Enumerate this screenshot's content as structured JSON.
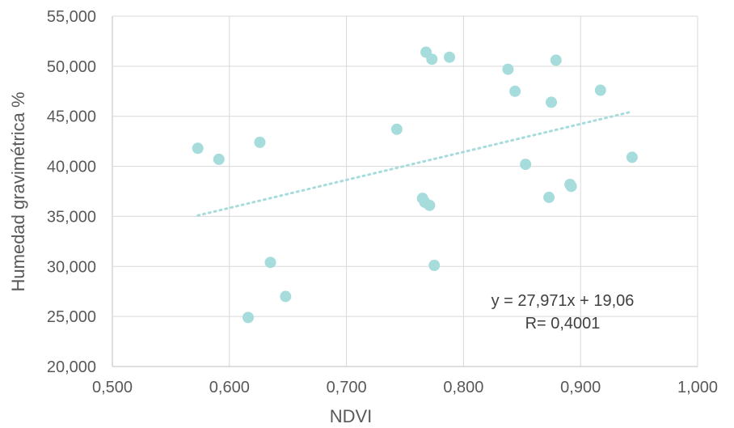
{
  "chart_data": {
    "type": "scatter",
    "xlabel": "NDVI",
    "ylabel": "Humedad gravimétrica %",
    "xlim": [
      0.5,
      1.0
    ],
    "ylim": [
      20,
      55
    ],
    "x_ticks": [
      "0,500",
      "0,600",
      "0,700",
      "0,800",
      "0,900",
      "1,000"
    ],
    "y_ticks": [
      "20,000",
      "25,000",
      "30,000",
      "35,000",
      "40,000",
      "45,000",
      "50,000",
      "55,000"
    ],
    "grid": true,
    "marker_color": "#a6dcdc",
    "trendline": {
      "type": "linear",
      "slope": 27.971,
      "intercept": 19.06,
      "x_range": [
        0.573,
        0.944
      ],
      "style": "dotted",
      "color": "#a6dcdc"
    },
    "annotations": [
      "y = 27,971x + 19,06",
      "R= 0,4001"
    ],
    "series": [
      {
        "points": [
          {
            "x": 0.573,
            "y": 41.8
          },
          {
            "x": 0.591,
            "y": 40.7
          },
          {
            "x": 0.616,
            "y": 24.9
          },
          {
            "x": 0.626,
            "y": 42.4
          },
          {
            "x": 0.635,
            "y": 30.4
          },
          {
            "x": 0.648,
            "y": 27.0
          },
          {
            "x": 0.743,
            "y": 43.7
          },
          {
            "x": 0.765,
            "y": 36.8
          },
          {
            "x": 0.767,
            "y": 36.4
          },
          {
            "x": 0.768,
            "y": 51.4
          },
          {
            "x": 0.771,
            "y": 36.1
          },
          {
            "x": 0.773,
            "y": 50.7
          },
          {
            "x": 0.775,
            "y": 30.1
          },
          {
            "x": 0.788,
            "y": 50.9
          },
          {
            "x": 0.838,
            "y": 49.7
          },
          {
            "x": 0.844,
            "y": 47.5
          },
          {
            "x": 0.853,
            "y": 40.2
          },
          {
            "x": 0.873,
            "y": 36.9
          },
          {
            "x": 0.875,
            "y": 46.4
          },
          {
            "x": 0.879,
            "y": 50.6
          },
          {
            "x": 0.891,
            "y": 38.2
          },
          {
            "x": 0.892,
            "y": 38.0
          },
          {
            "x": 0.917,
            "y": 47.6
          },
          {
            "x": 0.944,
            "y": 40.9
          }
        ]
      }
    ]
  }
}
